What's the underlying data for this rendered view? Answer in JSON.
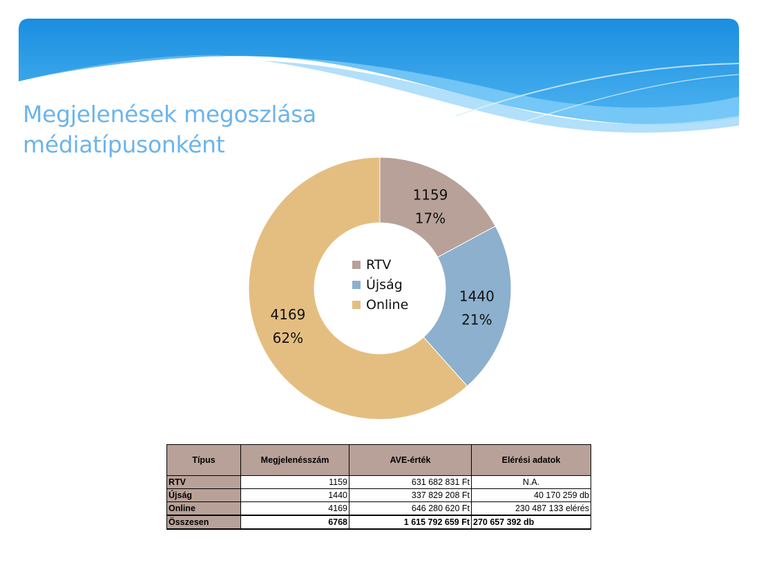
{
  "title": {
    "line1": "Megjelenések megoszlása",
    "line2": "médiatípusonként"
  },
  "colors": {
    "rtv": "#b8a198",
    "ujsag": "#8cb0cd",
    "online": "#e4be80",
    "title": "#6cb4ec",
    "banner_dark": "#1a8ee0",
    "banner_light": "#9ad6fa"
  },
  "chart_data": {
    "type": "pie",
    "variant": "donut",
    "categories": [
      "RTV",
      "Újság",
      "Online"
    ],
    "values": [
      1159,
      1440,
      4169
    ],
    "percent_labels": [
      "17%",
      "21%",
      "62%"
    ],
    "value_labels": [
      "1159",
      "1440",
      "4169"
    ],
    "legend": [
      "RTV",
      "Újság",
      "Online"
    ],
    "legend_position": "center"
  },
  "table": {
    "headers": [
      "Típus",
      "Megjelenésszám",
      "AVE-érték",
      "Elérési adatok"
    ],
    "rows": [
      {
        "type": "RTV",
        "count": "1159",
        "ave": "631 682 831 Ft",
        "reach": "N.A."
      },
      {
        "type": "Újság",
        "count": "1440",
        "ave": "337 829 208 Ft",
        "reach": "40 170 259 db"
      },
      {
        "type": "Online",
        "count": "4169",
        "ave": "646 280 620 Ft",
        "reach": "230 487 133 elérés"
      }
    ],
    "total": {
      "type": "Összesen",
      "count": "6768",
      "ave": "1 615 792 659 Ft",
      "reach": "270 657 392 db"
    }
  }
}
